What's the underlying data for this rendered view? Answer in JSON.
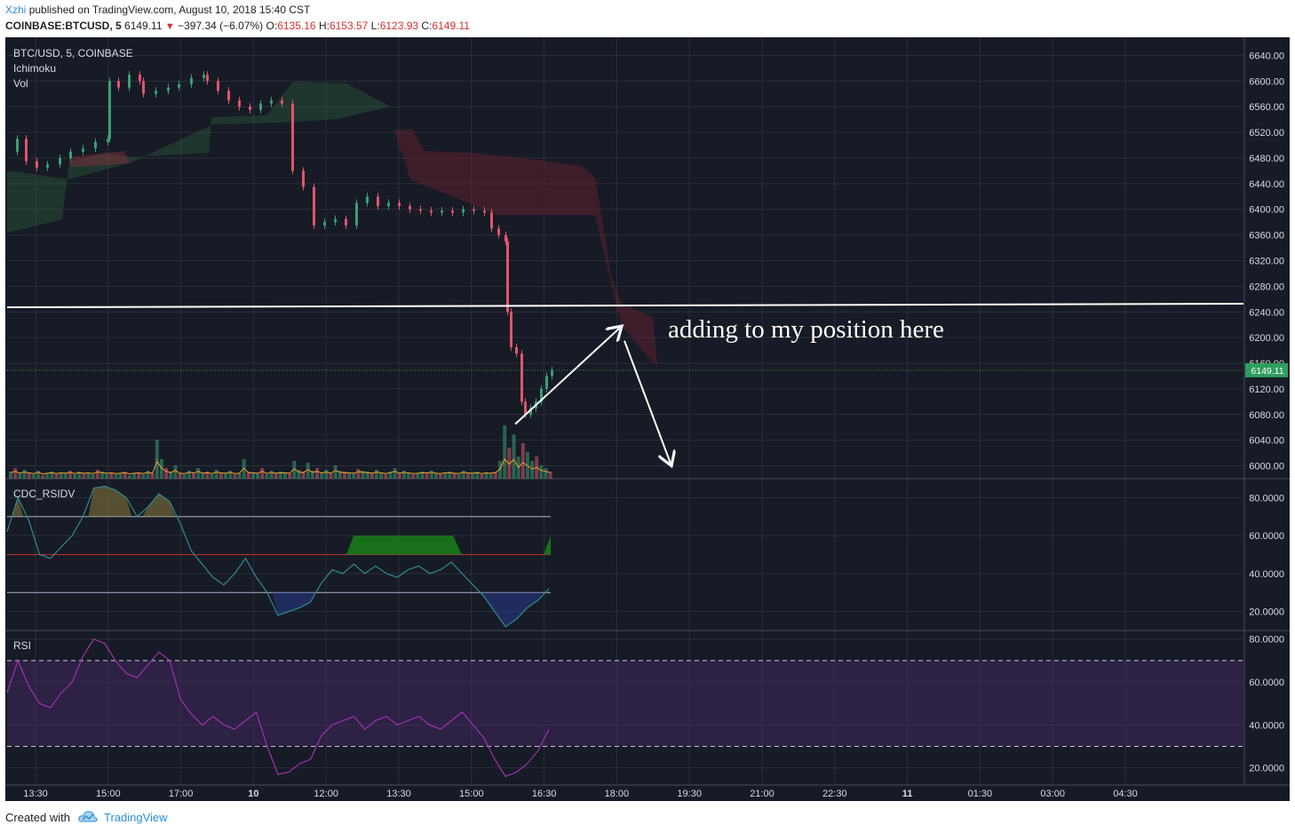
{
  "header": {
    "author": "Xzhi",
    "published_text": "published on TradingView.com, August 10, 2018 15:40 CST",
    "symbol": "COINBASE:BTCUSD, 5",
    "last_price": "6149.11",
    "change": "−397.34 (−6.07%)",
    "o_label": "O:",
    "o_value": "6135.16",
    "h_label": "H:",
    "h_value": "6153.57",
    "l_label": "L:",
    "l_value": "6123.93",
    "c_label": "C:",
    "c_value": "6149.11"
  },
  "footer": {
    "created_with": "Created with",
    "brand": "TradingView"
  },
  "colors": {
    "background": "#171b26",
    "up": "#3b9f74",
    "down": "#e0566a",
    "grid": "#2b2f3b",
    "rsi": "#a032b0",
    "rsidv": "#2e8b8b",
    "price_tag": "#2e9e5e"
  },
  "chart_data": [
    {
      "type": "candlestick",
      "panel": "price",
      "legend": [
        "BTC/USD, 5, COINBASE",
        "Ichimoku",
        "Vol"
      ],
      "ylim": [
        5980,
        6660
      ],
      "y_ticks": [
        "6640.00",
        "6600.00",
        "6560.00",
        "6520.00",
        "6480.00",
        "6440.00",
        "6400.00",
        "6360.00",
        "6320.00",
        "6280.00",
        "6240.00",
        "6200.00",
        "6160.00",
        "6120.00",
        "6080.00",
        "6040.00",
        "6000.00"
      ],
      "x_ticks": [
        "13:30",
        "15:00",
        "17:00",
        "10",
        "12:00",
        "13:30",
        "15:00",
        "16:30",
        "18:00",
        "19:30",
        "21:00",
        "22:30",
        "11",
        "01:30",
        "03:00",
        "04:30"
      ],
      "last_price_tag": "6149.11",
      "horizontal_line": 6250,
      "price_path": [
        [
          0,
          6490
        ],
        [
          8,
          6510
        ],
        [
          18,
          6475
        ],
        [
          30,
          6465
        ],
        [
          42,
          6470
        ],
        [
          56,
          6480
        ],
        [
          68,
          6490
        ],
        [
          82,
          6495
        ],
        [
          96,
          6505
        ],
        [
          110,
          6510
        ],
        [
          112,
          6600
        ],
        [
          122,
          6590
        ],
        [
          134,
          6610
        ],
        [
          146,
          6600
        ],
        [
          150,
          6580
        ],
        [
          164,
          6585
        ],
        [
          178,
          6590
        ],
        [
          190,
          6595
        ],
        [
          204,
          6605
        ],
        [
          218,
          6610
        ],
        [
          222,
          6600
        ],
        [
          234,
          6585
        ],
        [
          246,
          6570
        ],
        [
          258,
          6560
        ],
        [
          270,
          6555
        ],
        [
          282,
          6565
        ],
        [
          294,
          6570
        ],
        [
          306,
          6565
        ],
        [
          318,
          6460
        ],
        [
          330,
          6435
        ],
        [
          342,
          6375
        ],
        [
          354,
          6380
        ],
        [
          366,
          6385
        ],
        [
          378,
          6375
        ],
        [
          390,
          6410
        ],
        [
          402,
          6420
        ],
        [
          414,
          6405
        ],
        [
          426,
          6410
        ],
        [
          438,
          6405
        ],
        [
          450,
          6400
        ],
        [
          462,
          6398
        ],
        [
          474,
          6395
        ],
        [
          486,
          6398
        ],
        [
          498,
          6395
        ],
        [
          510,
          6400
        ],
        [
          522,
          6398
        ],
        [
          534,
          6395
        ],
        [
          542,
          6370
        ],
        [
          550,
          6360
        ],
        [
          558,
          6350
        ],
        [
          560,
          6240
        ],
        [
          564,
          6185
        ],
        [
          570,
          6175
        ],
        [
          576,
          6100
        ],
        [
          580,
          6080
        ],
        [
          586,
          6090
        ],
        [
          592,
          6100
        ],
        [
          598,
          6120
        ],
        [
          604,
          6140
        ],
        [
          610,
          6149
        ]
      ],
      "annotation": "adding to my position here",
      "arrows": [
        {
          "from": [
            580,
            6065
          ],
          "to": [
            700,
            6218
          ]
        },
        {
          "from": [
            703,
            6195
          ],
          "to": [
            756,
            6000
          ]
        }
      ]
    },
    {
      "type": "line",
      "panel": "indicator",
      "legend": "CDC_RSIDV",
      "ylim": [
        10,
        90
      ],
      "y_ticks": [
        "80.0000",
        "60.0000",
        "40.0000",
        "20.0000"
      ],
      "levels": [
        70,
        50,
        30
      ],
      "series": [
        {
          "values": [
            62,
            80,
            68,
            50,
            48,
            54,
            60,
            70,
            85,
            86,
            84,
            80,
            70,
            75,
            82,
            78,
            66,
            52,
            45,
            38,
            34,
            40,
            48,
            38,
            30,
            18,
            20,
            22,
            25,
            35,
            42,
            40,
            45,
            40,
            44,
            40,
            38,
            42,
            44,
            40,
            42,
            46,
            40,
            34,
            28,
            20,
            12,
            16,
            22,
            26,
            32
          ]
        }
      ]
    },
    {
      "type": "line",
      "panel": "indicator",
      "legend": "RSI",
      "ylim": [
        12,
        84
      ],
      "y_ticks": [
        "80.0000",
        "60.0000",
        "40.0000",
        "20.0000"
      ],
      "bands": [
        70,
        30
      ],
      "series": [
        {
          "values": [
            55,
            70,
            58,
            50,
            48,
            55,
            60,
            72,
            80,
            78,
            70,
            64,
            62,
            68,
            74,
            70,
            52,
            45,
            40,
            44,
            40,
            38,
            42,
            46,
            30,
            17,
            18,
            22,
            24,
            35,
            40,
            42,
            44,
            38,
            42,
            44,
            40,
            42,
            44,
            40,
            38,
            42,
            46,
            40,
            34,
            24,
            16,
            18,
            22,
            28,
            38
          ]
        }
      ]
    }
  ]
}
